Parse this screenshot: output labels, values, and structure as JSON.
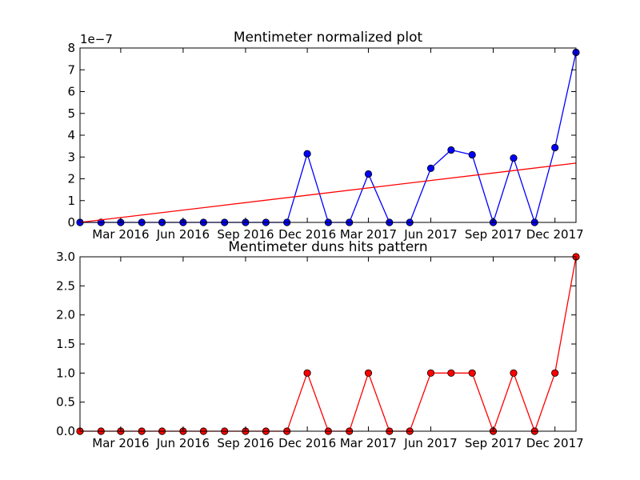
{
  "chart_data": [
    {
      "type": "line",
      "title": "Mentimeter normalized plot",
      "xlabel": "",
      "ylabel": "",
      "y_exponent_label": "1e−7",
      "ylim": [
        0,
        8
      ],
      "y_ticks": [
        "0",
        "1",
        "2",
        "3",
        "4",
        "5",
        "6",
        "7",
        "8"
      ],
      "x_ticks": [
        "Mar 2016",
        "Jun 2016",
        "Sep 2016",
        "Dec 2016",
        "Mar 2017",
        "Jun 2017",
        "Sep 2017",
        "Dec 2017"
      ],
      "x": [
        "2016-01",
        "2016-02",
        "2016-03",
        "2016-04",
        "2016-05",
        "2016-06",
        "2016-07",
        "2016-08",
        "2016-09",
        "2016-10",
        "2016-11",
        "2016-12",
        "2017-01",
        "2017-02",
        "2017-03",
        "2017-04",
        "2017-05",
        "2017-06",
        "2017-07",
        "2017-08",
        "2017-09",
        "2017-10",
        "2017-11",
        "2017-12",
        "2018-01"
      ],
      "series": [
        {
          "color": "#0000ff",
          "marker": "circle",
          "values": [
            0,
            0,
            0,
            0,
            0,
            0,
            0,
            0,
            0,
            0,
            0,
            3.15,
            0,
            0,
            2.22,
            0,
            0,
            2.48,
            3.32,
            3.1,
            0,
            2.95,
            0,
            3.43,
            7.8
          ]
        },
        {
          "color": "#ff0000",
          "marker": "none",
          "values": [
            0,
            2.72
          ],
          "x": [
            "2016-01",
            "2018-01"
          ]
        }
      ],
      "grid": false
    },
    {
      "type": "line",
      "title": "Mentimeter duns hits pattern",
      "xlabel": "",
      "ylabel": "",
      "ylim": [
        0,
        3
      ],
      "y_ticks": [
        "0.0",
        "0.5",
        "1.0",
        "1.5",
        "2.0",
        "2.5",
        "3.0"
      ],
      "x_ticks": [
        "Mar 2016",
        "Jun 2016",
        "Sep 2016",
        "Dec 2016",
        "Mar 2017",
        "Jun 2017",
        "Sep 2017",
        "Dec 2017"
      ],
      "x": [
        "2016-01",
        "2016-02",
        "2016-03",
        "2016-04",
        "2016-05",
        "2016-06",
        "2016-07",
        "2016-08",
        "2016-09",
        "2016-10",
        "2016-11",
        "2016-12",
        "2017-01",
        "2017-02",
        "2017-03",
        "2017-04",
        "2017-05",
        "2017-06",
        "2017-07",
        "2017-08",
        "2017-09",
        "2017-10",
        "2017-11",
        "2017-12",
        "2018-01"
      ],
      "series": [
        {
          "color": "#ff0000",
          "marker": "circle",
          "values": [
            0,
            0,
            0,
            0,
            0,
            0,
            0,
            0,
            0,
            0,
            0,
            1,
            0,
            0,
            1,
            0,
            0,
            1,
            1,
            1,
            0,
            1,
            0,
            1,
            3
          ]
        }
      ],
      "grid": false
    }
  ]
}
